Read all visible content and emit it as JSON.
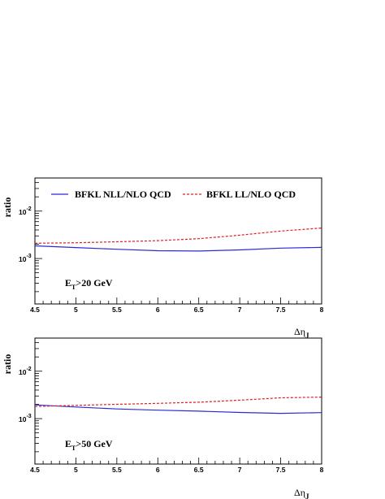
{
  "chart_data": [
    {
      "type": "line",
      "ylabel": "ratio",
      "xlabel": "Δη",
      "xlabel_sub": "J",
      "xlim": [
        4.5,
        8.0
      ],
      "yscale": "log",
      "ylim": [
        0.00011,
        0.05
      ],
      "xtick_labels": [
        "4.5",
        "5",
        "5.5",
        "6",
        "6.5",
        "7",
        "7.5",
        "8"
      ],
      "ytick_labels": [
        {
          "base": "10",
          "exp": "-2"
        },
        {
          "base": "10",
          "exp": "-3"
        }
      ],
      "annotation": {
        "pre": "E",
        "sub": "T",
        "post": ">20 GeV"
      },
      "legend": [
        "BFKL NLL/NLO QCD",
        "BFKL LL/NLO QCD"
      ],
      "legend_placement": "top",
      "series": [
        {
          "name": "BFKL NLL/NLO QCD",
          "color": "#2b2bd6",
          "style": "solid",
          "x": [
            4.5,
            5.0,
            5.5,
            6.0,
            6.5,
            7.0,
            7.5,
            8.0
          ],
          "y": [
            0.00185,
            0.0017,
            0.00157,
            0.00146,
            0.00144,
            0.00152,
            0.00166,
            0.00172
          ]
        },
        {
          "name": "BFKL LL/NLO QCD",
          "color": "#e02020",
          "style": "dashed",
          "x": [
            4.5,
            5.0,
            5.5,
            6.0,
            6.5,
            7.0,
            7.5,
            8.0
          ],
          "y": [
            0.0021,
            0.00215,
            0.00225,
            0.00238,
            0.00262,
            0.0031,
            0.0038,
            0.0044
          ]
        }
      ]
    },
    {
      "type": "line",
      "ylabel": "ratio",
      "xlabel": "Δη",
      "xlabel_sub": "J",
      "xlim": [
        4.5,
        8.0
      ],
      "yscale": "log",
      "ylim": [
        0.00011,
        0.05
      ],
      "xtick_labels": [
        "4.5",
        "5",
        "5.5",
        "6",
        "6.5",
        "7",
        "7.5",
        "8"
      ],
      "ytick_labels": [
        {
          "base": "10",
          "exp": "-2"
        },
        {
          "base": "10",
          "exp": "-3"
        }
      ],
      "annotation": {
        "pre": "E",
        "sub": "T",
        "post": ">50 GeV"
      },
      "legend": [],
      "series": [
        {
          "name": "BFKL NLL/NLO QCD",
          "color": "#2b2bd6",
          "style": "solid",
          "x": [
            4.5,
            5.0,
            5.5,
            6.0,
            6.5,
            7.0,
            7.5,
            8.0
          ],
          "y": [
            0.00195,
            0.00176,
            0.0016,
            0.00151,
            0.00144,
            0.00135,
            0.00129,
            0.00134
          ]
        },
        {
          "name": "BFKL LL/NLO QCD",
          "color": "#e02020",
          "style": "dashed",
          "x": [
            4.5,
            5.0,
            5.5,
            6.0,
            6.5,
            7.0,
            7.5,
            8.0
          ],
          "y": [
            0.0018,
            0.0019,
            0.002,
            0.0021,
            0.00222,
            0.00245,
            0.00275,
            0.00285
          ]
        }
      ]
    }
  ]
}
